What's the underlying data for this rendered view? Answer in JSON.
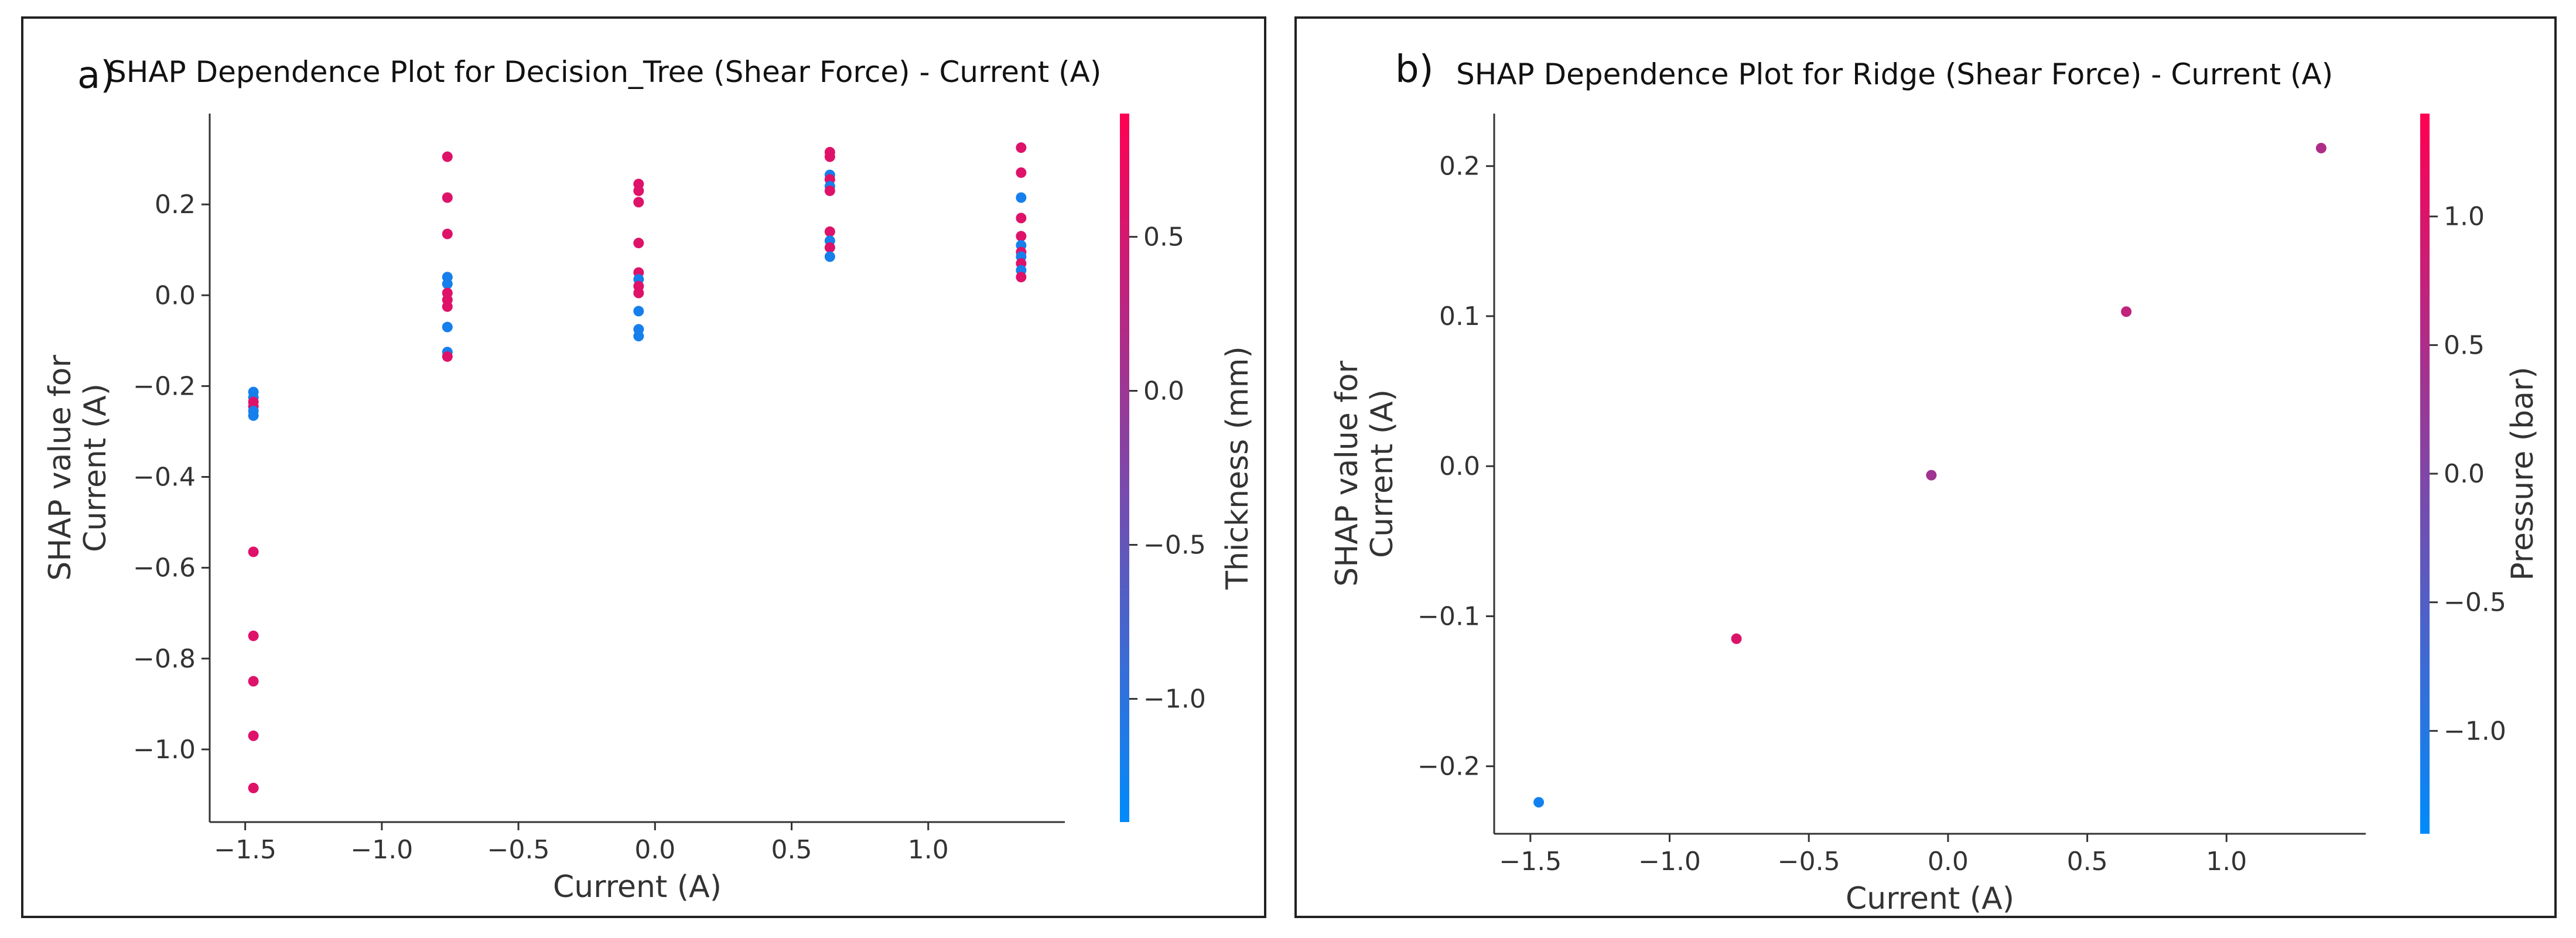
{
  "chart_data": [
    {
      "type": "scatter",
      "panel_label": "a)",
      "title": "SHAP Dependence Plot for Decision_Tree (Shear Force) - Current (A)",
      "xlabel": "Current (A)",
      "ylabel_lines": [
        "SHAP value for",
        "Current (A)"
      ],
      "colorbar_label": "Thickness (mm)",
      "xlim": [
        -1.63,
        1.5
      ],
      "ylim": [
        -1.16,
        0.4
      ],
      "xticks": [
        -1.5,
        -1.0,
        -0.5,
        0.0,
        0.5,
        1.0
      ],
      "xtick_labels": [
        "−1.5",
        "−1.0",
        "−0.5",
        "0.0",
        "0.5",
        "1.0"
      ],
      "yticks": [
        0.2,
        0.0,
        -0.2,
        -0.4,
        -0.6,
        -0.8,
        -1.0
      ],
      "ytick_labels": [
        "0.2",
        "0.0",
        "−0.2",
        "−0.4",
        "−0.6",
        "−0.8",
        "−1.0"
      ],
      "color_range": [
        -1.4,
        0.9
      ],
      "colorbar_ticks": [
        0.5,
        0.0,
        -0.5,
        -1.0
      ],
      "colorbar_tick_labels": [
        "0.5",
        "0.0",
        "−0.5",
        "−1.0"
      ],
      "colors": {
        "low": "#008bfb",
        "high": "#ff0052"
      },
      "points": [
        {
          "x": -1.47,
          "y": -0.213,
          "c": -1.2
        },
        {
          "x": -1.47,
          "y": -0.225,
          "c": -1.2
        },
        {
          "x": -1.47,
          "y": -0.235,
          "c": 0.6
        },
        {
          "x": -1.47,
          "y": -0.245,
          "c": 0.6
        },
        {
          "x": -1.47,
          "y": -0.255,
          "c": -1.2
        },
        {
          "x": -1.47,
          "y": -0.265,
          "c": -1.2
        },
        {
          "x": -1.47,
          "y": -0.565,
          "c": 0.6
        },
        {
          "x": -1.47,
          "y": -0.75,
          "c": 0.6
        },
        {
          "x": -1.47,
          "y": -0.85,
          "c": 0.6
        },
        {
          "x": -1.47,
          "y": -0.97,
          "c": 0.6
        },
        {
          "x": -1.47,
          "y": -1.085,
          "c": 0.6
        },
        {
          "x": -0.76,
          "y": 0.305,
          "c": 0.6
        },
        {
          "x": -0.76,
          "y": 0.215,
          "c": 0.6
        },
        {
          "x": -0.76,
          "y": 0.135,
          "c": 0.6
        },
        {
          "x": -0.76,
          "y": 0.04,
          "c": -1.2
        },
        {
          "x": -0.76,
          "y": 0.025,
          "c": -1.2
        },
        {
          "x": -0.76,
          "y": 0.005,
          "c": 0.6
        },
        {
          "x": -0.76,
          "y": -0.01,
          "c": 0.6
        },
        {
          "x": -0.76,
          "y": -0.025,
          "c": 0.6
        },
        {
          "x": -0.76,
          "y": -0.07,
          "c": -1.2
        },
        {
          "x": -0.76,
          "y": -0.125,
          "c": -1.2
        },
        {
          "x": -0.76,
          "y": -0.135,
          "c": 0.6
        },
        {
          "x": -0.06,
          "y": 0.245,
          "c": 0.6
        },
        {
          "x": -0.06,
          "y": 0.23,
          "c": 0.6
        },
        {
          "x": -0.06,
          "y": 0.205,
          "c": 0.6
        },
        {
          "x": -0.06,
          "y": 0.115,
          "c": 0.6
        },
        {
          "x": -0.06,
          "y": 0.05,
          "c": 0.6
        },
        {
          "x": -0.06,
          "y": 0.035,
          "c": -1.2
        },
        {
          "x": -0.06,
          "y": 0.02,
          "c": 0.6
        },
        {
          "x": -0.06,
          "y": 0.005,
          "c": 0.6
        },
        {
          "x": -0.06,
          "y": -0.035,
          "c": -1.2
        },
        {
          "x": -0.06,
          "y": -0.075,
          "c": -1.2
        },
        {
          "x": -0.06,
          "y": -0.09,
          "c": -1.2
        },
        {
          "x": 0.64,
          "y": 0.315,
          "c": 0.6
        },
        {
          "x": 0.64,
          "y": 0.305,
          "c": 0.6
        },
        {
          "x": 0.64,
          "y": 0.265,
          "c": -1.2
        },
        {
          "x": 0.64,
          "y": 0.255,
          "c": 0.6
        },
        {
          "x": 0.64,
          "y": 0.24,
          "c": -1.2
        },
        {
          "x": 0.64,
          "y": 0.23,
          "c": 0.6
        },
        {
          "x": 0.64,
          "y": 0.14,
          "c": 0.6
        },
        {
          "x": 0.64,
          "y": 0.12,
          "c": -1.2
        },
        {
          "x": 0.64,
          "y": 0.105,
          "c": 0.6
        },
        {
          "x": 0.64,
          "y": 0.085,
          "c": -1.2
        },
        {
          "x": 1.34,
          "y": 0.325,
          "c": 0.6
        },
        {
          "x": 1.34,
          "y": 0.27,
          "c": 0.6
        },
        {
          "x": 1.34,
          "y": 0.215,
          "c": -1.2
        },
        {
          "x": 1.34,
          "y": 0.17,
          "c": 0.6
        },
        {
          "x": 1.34,
          "y": 0.13,
          "c": 0.6
        },
        {
          "x": 1.34,
          "y": 0.11,
          "c": -1.2
        },
        {
          "x": 1.34,
          "y": 0.095,
          "c": 0.6
        },
        {
          "x": 1.34,
          "y": 0.085,
          "c": -1.2
        },
        {
          "x": 1.34,
          "y": 0.07,
          "c": 0.6
        },
        {
          "x": 1.34,
          "y": 0.055,
          "c": -1.2
        },
        {
          "x": 1.34,
          "y": 0.04,
          "c": 0.6
        }
      ]
    },
    {
      "type": "scatter",
      "panel_label": "b)",
      "title": "SHAP Dependence Plot for Ridge (Shear Force) - Current (A)",
      "xlabel": "Current (A)",
      "ylabel_lines": [
        "SHAP value for",
        "Current (A)"
      ],
      "colorbar_label": "Pressure (bar)",
      "xlim": [
        -1.63,
        1.5
      ],
      "ylim": [
        -0.245,
        0.235
      ],
      "xticks": [
        -1.5,
        -1.0,
        -0.5,
        0.0,
        0.5,
        1.0
      ],
      "xtick_labels": [
        "−1.5",
        "−1.0",
        "−0.5",
        "0.0",
        "0.5",
        "1.0"
      ],
      "yticks": [
        0.2,
        0.1,
        0.0,
        -0.1,
        -0.2
      ],
      "ytick_labels": [
        "0.2",
        "0.1",
        "0.0",
        "−0.1",
        "−0.2"
      ],
      "color_range": [
        -1.4,
        1.4
      ],
      "colorbar_ticks": [
        1.0,
        0.5,
        0.0,
        -0.5,
        -1.0
      ],
      "colorbar_tick_labels": [
        "1.0",
        "0.5",
        "0.0",
        "−0.5",
        "−1.0"
      ],
      "colors": {
        "low": "#008bfb",
        "high": "#ff0052"
      },
      "points": [
        {
          "x": -1.47,
          "y": -0.224,
          "c": -1.2
        },
        {
          "x": -0.76,
          "y": -0.115,
          "c": 1.0
        },
        {
          "x": -0.06,
          "y": -0.006,
          "c": 0.35
        },
        {
          "x": 0.64,
          "y": 0.103,
          "c": 0.7
        },
        {
          "x": 1.34,
          "y": 0.212,
          "c": 0.5
        }
      ]
    }
  ]
}
